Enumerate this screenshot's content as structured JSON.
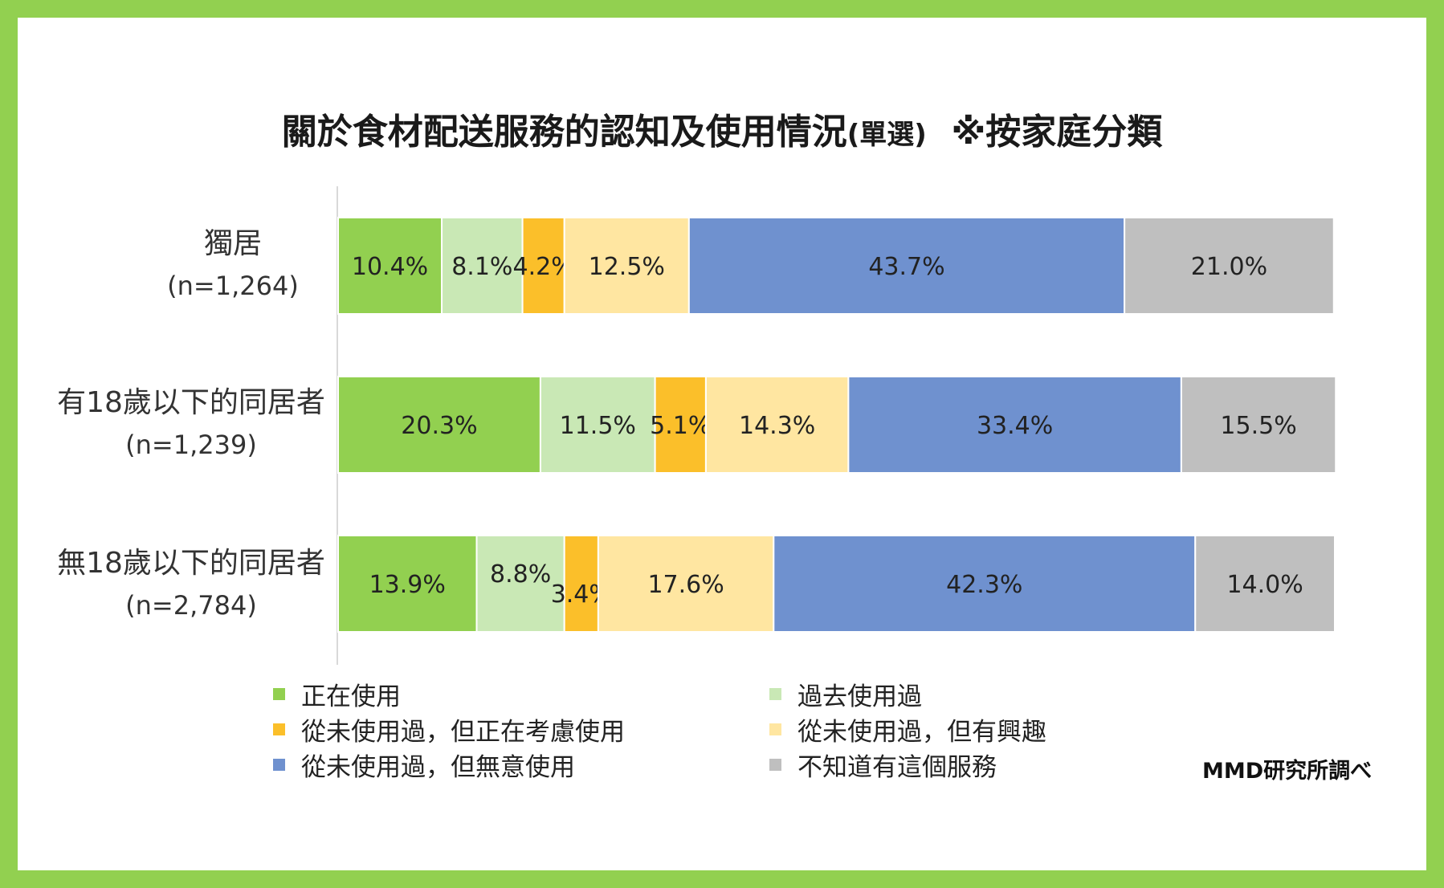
{
  "chart_data": {
    "type": "bar",
    "orientation": "horizontal",
    "stacked": true,
    "normalized_percent": true,
    "title": "關於食材配送服務的認知及使用情況",
    "title_paren": "(單選)",
    "title_note": "※按家庭分類",
    "categories": [
      {
        "name": "獨居",
        "n": "(n=1,264)"
      },
      {
        "name": "有18歲以下的同居者",
        "n": "(n=1,239)"
      },
      {
        "name": "無18歲以下的同居者",
        "n": "(n=2,784)"
      }
    ],
    "series": [
      {
        "name": "正在使用",
        "color": "#92d050",
        "values": [
          10.4,
          20.3,
          13.9
        ],
        "labels": [
          "10.4%",
          "20.3%",
          "13.9%"
        ]
      },
      {
        "name": "過去使用過",
        "color": "#c9e8b5",
        "values": [
          8.1,
          11.5,
          8.8
        ],
        "labels": [
          "8.1%",
          "11.5%",
          "8.8%"
        ]
      },
      {
        "name": "從未使用過，但正在考慮使用",
        "color": "#fbbf2a",
        "values": [
          4.2,
          5.1,
          3.4
        ],
        "labels": [
          "4.2%",
          "5.1%",
          "3.4%"
        ]
      },
      {
        "name": "從未使用過，但有興趣",
        "color": "#ffe6a1",
        "values": [
          12.5,
          14.3,
          17.6
        ],
        "labels": [
          "12.5%",
          "14.3%",
          "17.6%"
        ]
      },
      {
        "name": "從未使用過，但無意使用",
        "color": "#6f91cf",
        "values": [
          43.7,
          33.4,
          42.3
        ],
        "labels": [
          "43.7%",
          "33.4%",
          "42.3%"
        ]
      },
      {
        "name": "不知道有這個服務",
        "color": "#bfbfbf",
        "values": [
          21.0,
          15.5,
          14.0
        ],
        "labels": [
          "21.0%",
          "15.5%",
          "14.0%"
        ]
      }
    ],
    "xlim": [
      0,
      100
    ],
    "legend_position": "bottom",
    "grid": false
  },
  "credit": "MMD研究所調べ"
}
